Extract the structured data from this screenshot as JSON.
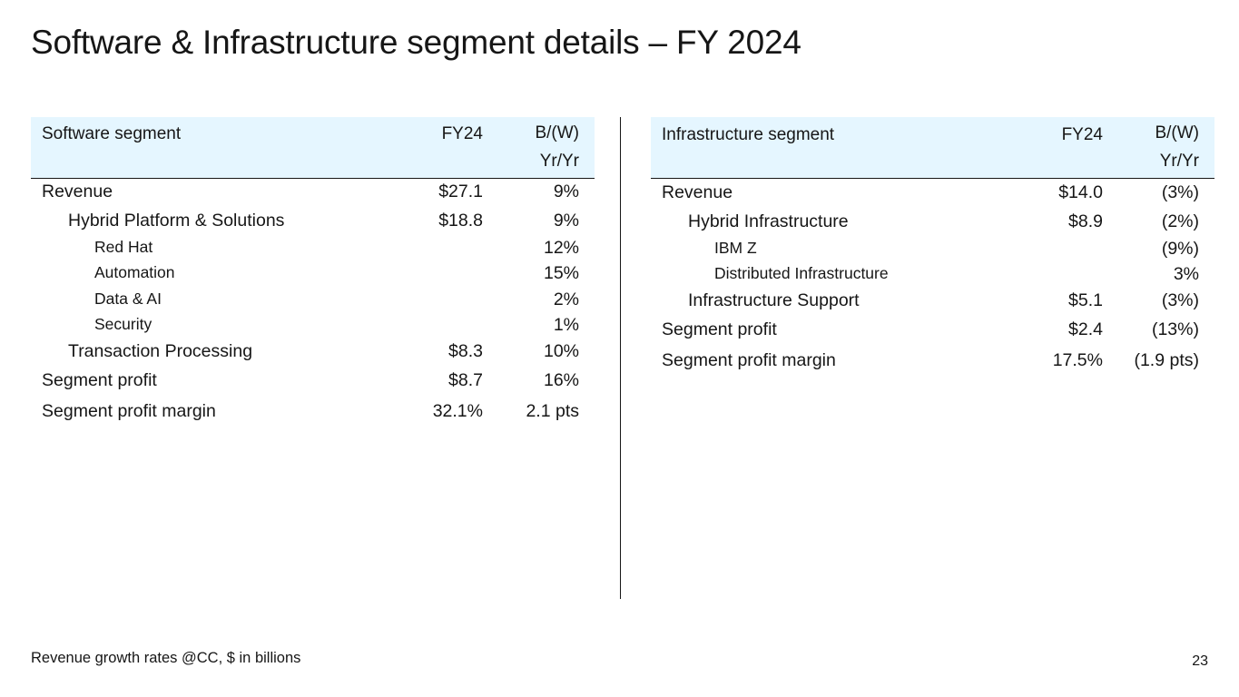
{
  "title": "Software & Infrastructure segment details – FY 2024",
  "software": {
    "header": {
      "label": "Software segment",
      "col1": "FY24",
      "col2_line1": "B/(W)",
      "col2_line2": "Yr/Yr"
    },
    "rows": [
      {
        "label": "Revenue",
        "fy24": "$27.1",
        "yy": "9%"
      },
      {
        "label": "Hybrid Platform & Solutions",
        "fy24": "$18.8",
        "yy": "9%"
      },
      {
        "label": "Red Hat",
        "fy24": "",
        "yy": "12%"
      },
      {
        "label": "Automation",
        "fy24": "",
        "yy": "15%"
      },
      {
        "label": "Data & AI",
        "fy24": "",
        "yy": "2%"
      },
      {
        "label": "Security",
        "fy24": "",
        "yy": "1%"
      },
      {
        "label": "Transaction Processing",
        "fy24": "$8.3",
        "yy": "10%"
      },
      {
        "label": "Segment profit",
        "fy24": "$8.7",
        "yy": "16%"
      },
      {
        "label": "Segment profit margin",
        "fy24": "32.1%",
        "yy": "2.1 pts"
      }
    ]
  },
  "infrastructure": {
    "header": {
      "label": "Infrastructure segment",
      "col1": "FY24",
      "col2_line1": "B/(W)",
      "col2_line2": "Yr/Yr"
    },
    "rows": [
      {
        "label": "Revenue",
        "fy24": "$14.0",
        "yy": "(3%)"
      },
      {
        "label": "Hybrid Infrastructure",
        "fy24": "$8.9",
        "yy": "(2%)"
      },
      {
        "label": "IBM Z",
        "fy24": "",
        "yy": "(9%)"
      },
      {
        "label": "Distributed Infrastructure",
        "fy24": "",
        "yy": "3%"
      },
      {
        "label": "Infrastructure Support",
        "fy24": "$5.1",
        "yy": "(3%)"
      },
      {
        "label": "Segment profit",
        "fy24": "$2.4",
        "yy": "(13%)"
      },
      {
        "label": "Segment profit margin",
        "fy24": "17.5%",
        "yy": "(1.9 pts)"
      }
    ]
  },
  "footnote": "Revenue growth rates @CC, $ in billions",
  "page_number": "23"
}
